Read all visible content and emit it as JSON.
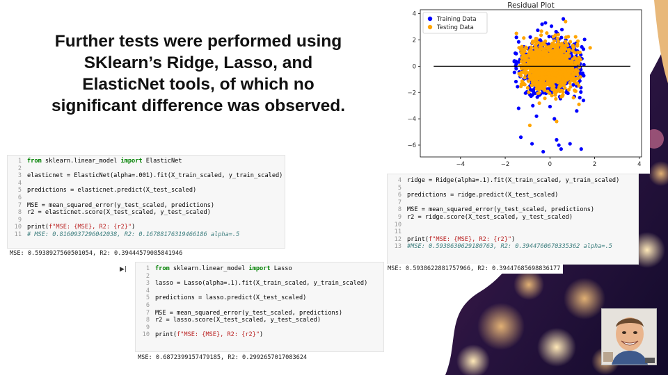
{
  "slide": {
    "title": "Further tests were performed using SKlearn’s Ridge, Lasso, and ElasticNet tools, of which no significant difference was observed."
  },
  "elasticnet_cell": {
    "lines": [
      {
        "n": "1",
        "text": "from sklearn.linear_model import ElasticNet"
      },
      {
        "n": "2",
        "text": ""
      },
      {
        "n": "3",
        "text": "elasticnet = ElasticNet(alpha=.001).fit(X_train_scaled, y_train_scaled)"
      },
      {
        "n": "4",
        "text": ""
      },
      {
        "n": "5",
        "text": "predictions = elasticnet.predict(X_test_scaled)"
      },
      {
        "n": "6",
        "text": ""
      },
      {
        "n": "7",
        "text": "MSE = mean_squared_error(y_test_scaled, predictions)"
      },
      {
        "n": "8",
        "text": "r2 = elasticnet.score(X_test_scaled, y_test_scaled)"
      },
      {
        "n": "9",
        "text": ""
      },
      {
        "n": "10",
        "text": "print(f\"MSE: {MSE}, R2: {r2}\")"
      },
      {
        "n": "11",
        "text": "# MSE: 0.8160937296042038, R2: 0.16788176319466186 alpha=.5"
      }
    ],
    "output": "MSE: 0.5938927560501054, R2: 0.39444579085841946"
  },
  "ridge_cell": {
    "lines": [
      {
        "n": "4",
        "text": "ridge = Ridge(alpha=.1).fit(X_train_scaled, y_train_scaled)"
      },
      {
        "n": "5",
        "text": ""
      },
      {
        "n": "6",
        "text": "predictions = ridge.predict(X_test_scaled)"
      },
      {
        "n": "7",
        "text": ""
      },
      {
        "n": "8",
        "text": "MSE = mean_squared_error(y_test_scaled, predictions)"
      },
      {
        "n": "9",
        "text": "r2 = ridge.score(X_test_scaled, y_test_scaled)"
      },
      {
        "n": "10",
        "text": ""
      },
      {
        "n": "11",
        "text": ""
      },
      {
        "n": "12",
        "text": "print(f\"MSE: {MSE}, R2: {r2}\")"
      },
      {
        "n": "13",
        "text": "#MSE: 0.5938630629180763, R2: 0.3944760670335362 alpha=.5"
      }
    ],
    "output": "MSE: 0.5938622881757966, R2: 0.39447685698836177"
  },
  "lasso_cell": {
    "prompt": "▶|",
    "lines": [
      {
        "n": "1",
        "text": "from sklearn.linear_model import Lasso"
      },
      {
        "n": "2",
        "text": ""
      },
      {
        "n": "3",
        "text": "lasso = Lasso(alpha=.1).fit(X_train_scaled, y_train_scaled)"
      },
      {
        "n": "4",
        "text": ""
      },
      {
        "n": "5",
        "text": "predictions = lasso.predict(X_test_scaled)"
      },
      {
        "n": "6",
        "text": ""
      },
      {
        "n": "7",
        "text": "MSE = mean_squared_error(y_test_scaled, predictions)"
      },
      {
        "n": "8",
        "text": "r2 = lasso.score(X_test_scaled, y_test_scaled)"
      },
      {
        "n": "9",
        "text": ""
      },
      {
        "n": "10",
        "text": "print(f\"MSE: {MSE}, R2: {r2}\")"
      }
    ],
    "output": "MSE: 0.6872399157479185, R2: 0.2992657017083624"
  },
  "chart_data": {
    "type": "scatter",
    "title": "Residual Plot",
    "xlabel": "",
    "ylabel": "",
    "xlim": [
      -5.8,
      4.1
    ],
    "ylim": [
      -6.9,
      4.3
    ],
    "x_ticks": [
      "−4",
      "−2",
      "0",
      "2",
      "4"
    ],
    "y_ticks": [
      "4",
      "2",
      "0",
      "−2",
      "−4",
      "−6"
    ],
    "hline_y": 0,
    "hline_x_range": [
      -5.2,
      3.6
    ],
    "legend": "top-left",
    "series": [
      {
        "name": "Training Data",
        "color": "#0000ff",
        "cluster_center": [
          0.0,
          0.0
        ],
        "cluster_spread": [
          1.6,
          2.3
        ],
        "outliers": [
          [
            -1.3,
            -5.4
          ],
          [
            0.3,
            -5.6
          ],
          [
            0.4,
            -6.0
          ],
          [
            -0.8,
            -5.9
          ],
          [
            0.5,
            -6.3
          ],
          [
            1.4,
            -6.3
          ],
          [
            -0.3,
            -6.5
          ],
          [
            0.9,
            -5.9
          ],
          [
            -1.4,
            -3.2
          ],
          [
            1.2,
            -3.4
          ],
          [
            -0.6,
            -3.8
          ],
          [
            0.2,
            -4.0
          ],
          [
            1.5,
            -2.6
          ],
          [
            -1.5,
            2.2
          ],
          [
            0.6,
            3.6
          ],
          [
            -0.2,
            3.3
          ],
          [
            1.5,
            1.3
          ]
        ]
      },
      {
        "name": "Testing Data",
        "color": "#ffa500",
        "cluster_center": [
          0.0,
          0.0
        ],
        "cluster_spread": [
          1.4,
          2.1
        ],
        "outliers": [
          [
            1.8,
            1.4
          ],
          [
            -1.5,
            2.5
          ],
          [
            1.3,
            -2.9
          ],
          [
            0.3,
            -4.2
          ],
          [
            -0.9,
            -4.5
          ],
          [
            0.7,
            3.4
          ]
        ]
      }
    ]
  },
  "presenter": {
    "icon": "presenter-avatar-icon"
  }
}
